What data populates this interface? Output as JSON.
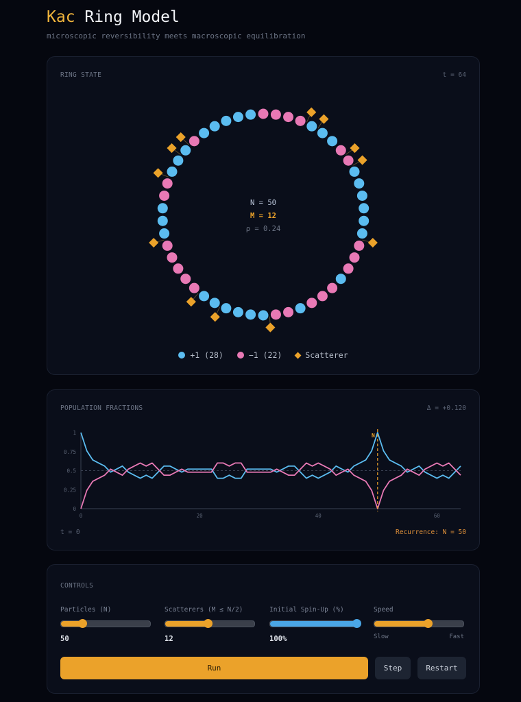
{
  "header": {
    "title_accent": "Kac",
    "title_rest": "Ring Model",
    "subtitle": "microscopic reversibility meets macroscopic equilibration"
  },
  "colors": {
    "up": "#5bbcf0",
    "down": "#e879b5",
    "scatterer": "#eba22a",
    "background": "#05070f",
    "card": "#0a0e1a"
  },
  "ring": {
    "label": "RING STATE",
    "time": "t = 64",
    "center": {
      "n": "N = 50",
      "m": "M = 12",
      "rho": "ρ = 0.24"
    },
    "spins": [
      -1,
      -1,
      -1,
      -1,
      1,
      1,
      1,
      -1,
      -1,
      1,
      1,
      1,
      1,
      1,
      1,
      -1,
      -1,
      -1,
      1,
      -1,
      -1,
      -1,
      1,
      -1,
      -1,
      1,
      1,
      1,
      1,
      1,
      1,
      -1,
      -1,
      -1,
      -1,
      -1,
      1,
      1,
      1,
      -1,
      -1,
      1,
      1,
      1,
      -1,
      1,
      1,
      1,
      1,
      1
    ],
    "scatterer_edges": [
      3,
      4,
      7,
      8,
      14,
      24,
      28,
      30,
      35,
      40,
      42,
      43
    ],
    "legend": {
      "up": "+1 (28)",
      "down": "−1 (22)",
      "scatterer": "Scatterer"
    }
  },
  "population": {
    "label": "POPULATION FRACTIONS",
    "delta": "Δ = +0.120",
    "t_start": "t = 0",
    "recurrence": "Recurrence: N = 50",
    "marker_label": "N"
  },
  "chart_data": {
    "type": "line",
    "x": [
      0,
      1,
      2,
      3,
      4,
      5,
      6,
      7,
      8,
      9,
      10,
      11,
      12,
      13,
      14,
      15,
      16,
      17,
      18,
      19,
      20,
      21,
      22,
      23,
      24,
      25,
      26,
      27,
      28,
      29,
      30,
      31,
      32,
      33,
      34,
      35,
      36,
      37,
      38,
      39,
      40,
      41,
      42,
      43,
      44,
      45,
      46,
      47,
      48,
      49,
      50,
      51,
      52,
      53,
      54,
      55,
      56,
      57,
      58,
      59,
      60,
      61,
      62,
      63,
      64
    ],
    "series": [
      {
        "values": [
          1,
          0.76,
          0.64,
          0.6,
          0.56,
          0.48,
          0.52,
          0.56,
          0.48,
          0.44,
          0.4,
          0.44,
          0.4,
          0.48,
          0.56,
          0.56,
          0.52,
          0.48,
          0.52,
          0.52,
          0.52,
          0.52,
          0.52,
          0.4,
          0.4,
          0.44,
          0.4,
          0.4,
          0.52,
          0.52,
          0.52,
          0.52,
          0.52,
          0.48,
          0.52,
          0.56,
          0.56,
          0.48,
          0.4,
          0.44,
          0.4,
          0.44,
          0.48,
          0.56,
          0.52,
          0.48,
          0.56,
          0.6,
          0.64,
          0.76,
          1,
          0.76,
          0.64,
          0.6,
          0.56,
          0.48,
          0.52,
          0.56,
          0.48,
          0.44,
          0.4,
          0.44,
          0.4,
          0.48,
          0.56
        ],
        "color": "#5bbcf0"
      },
      {
        "values": [
          0,
          0.24,
          0.36,
          0.4,
          0.44,
          0.52,
          0.48,
          0.44,
          0.52,
          0.56,
          0.6,
          0.56,
          0.6,
          0.52,
          0.44,
          0.44,
          0.48,
          0.52,
          0.48,
          0.48,
          0.48,
          0.48,
          0.48,
          0.6,
          0.6,
          0.56,
          0.6,
          0.6,
          0.48,
          0.48,
          0.48,
          0.48,
          0.48,
          0.52,
          0.48,
          0.44,
          0.44,
          0.52,
          0.6,
          0.56,
          0.6,
          0.56,
          0.52,
          0.44,
          0.48,
          0.52,
          0.44,
          0.4,
          0.36,
          0.24,
          0,
          0.24,
          0.36,
          0.4,
          0.44,
          0.52,
          0.48,
          0.44,
          0.52,
          0.56,
          0.6,
          0.56,
          0.6,
          0.52,
          0.44
        ],
        "color": "#e879b5"
      }
    ],
    "xlim": [
      0,
      64
    ],
    "ylim": [
      0,
      1
    ],
    "xticks": [
      0,
      20,
      40,
      60
    ],
    "yticks": [
      0,
      0.25,
      0.5,
      0.75,
      1
    ],
    "ytick_labels": [
      "0",
      "0.25",
      "0.5",
      "0.75",
      "1"
    ],
    "reference_line": 0.5,
    "recurrence_marker_x": 50,
    "grid": false
  },
  "controls": {
    "label": "CONTROLS",
    "particles": {
      "label": "Particles (N)",
      "value": "50",
      "level": 0.24
    },
    "scatterers": {
      "label": "Scatterers (M ≤ N/2)",
      "value": "12",
      "level": 0.48
    },
    "spin_up": {
      "label": "Initial Spin-Up (%)",
      "value": "100%",
      "level": 1.0
    },
    "speed": {
      "label": "Speed",
      "min_label": "Slow",
      "max_label": "Fast",
      "level": 0.6
    },
    "run": "Run",
    "step": "Step",
    "restart": "Restart"
  }
}
